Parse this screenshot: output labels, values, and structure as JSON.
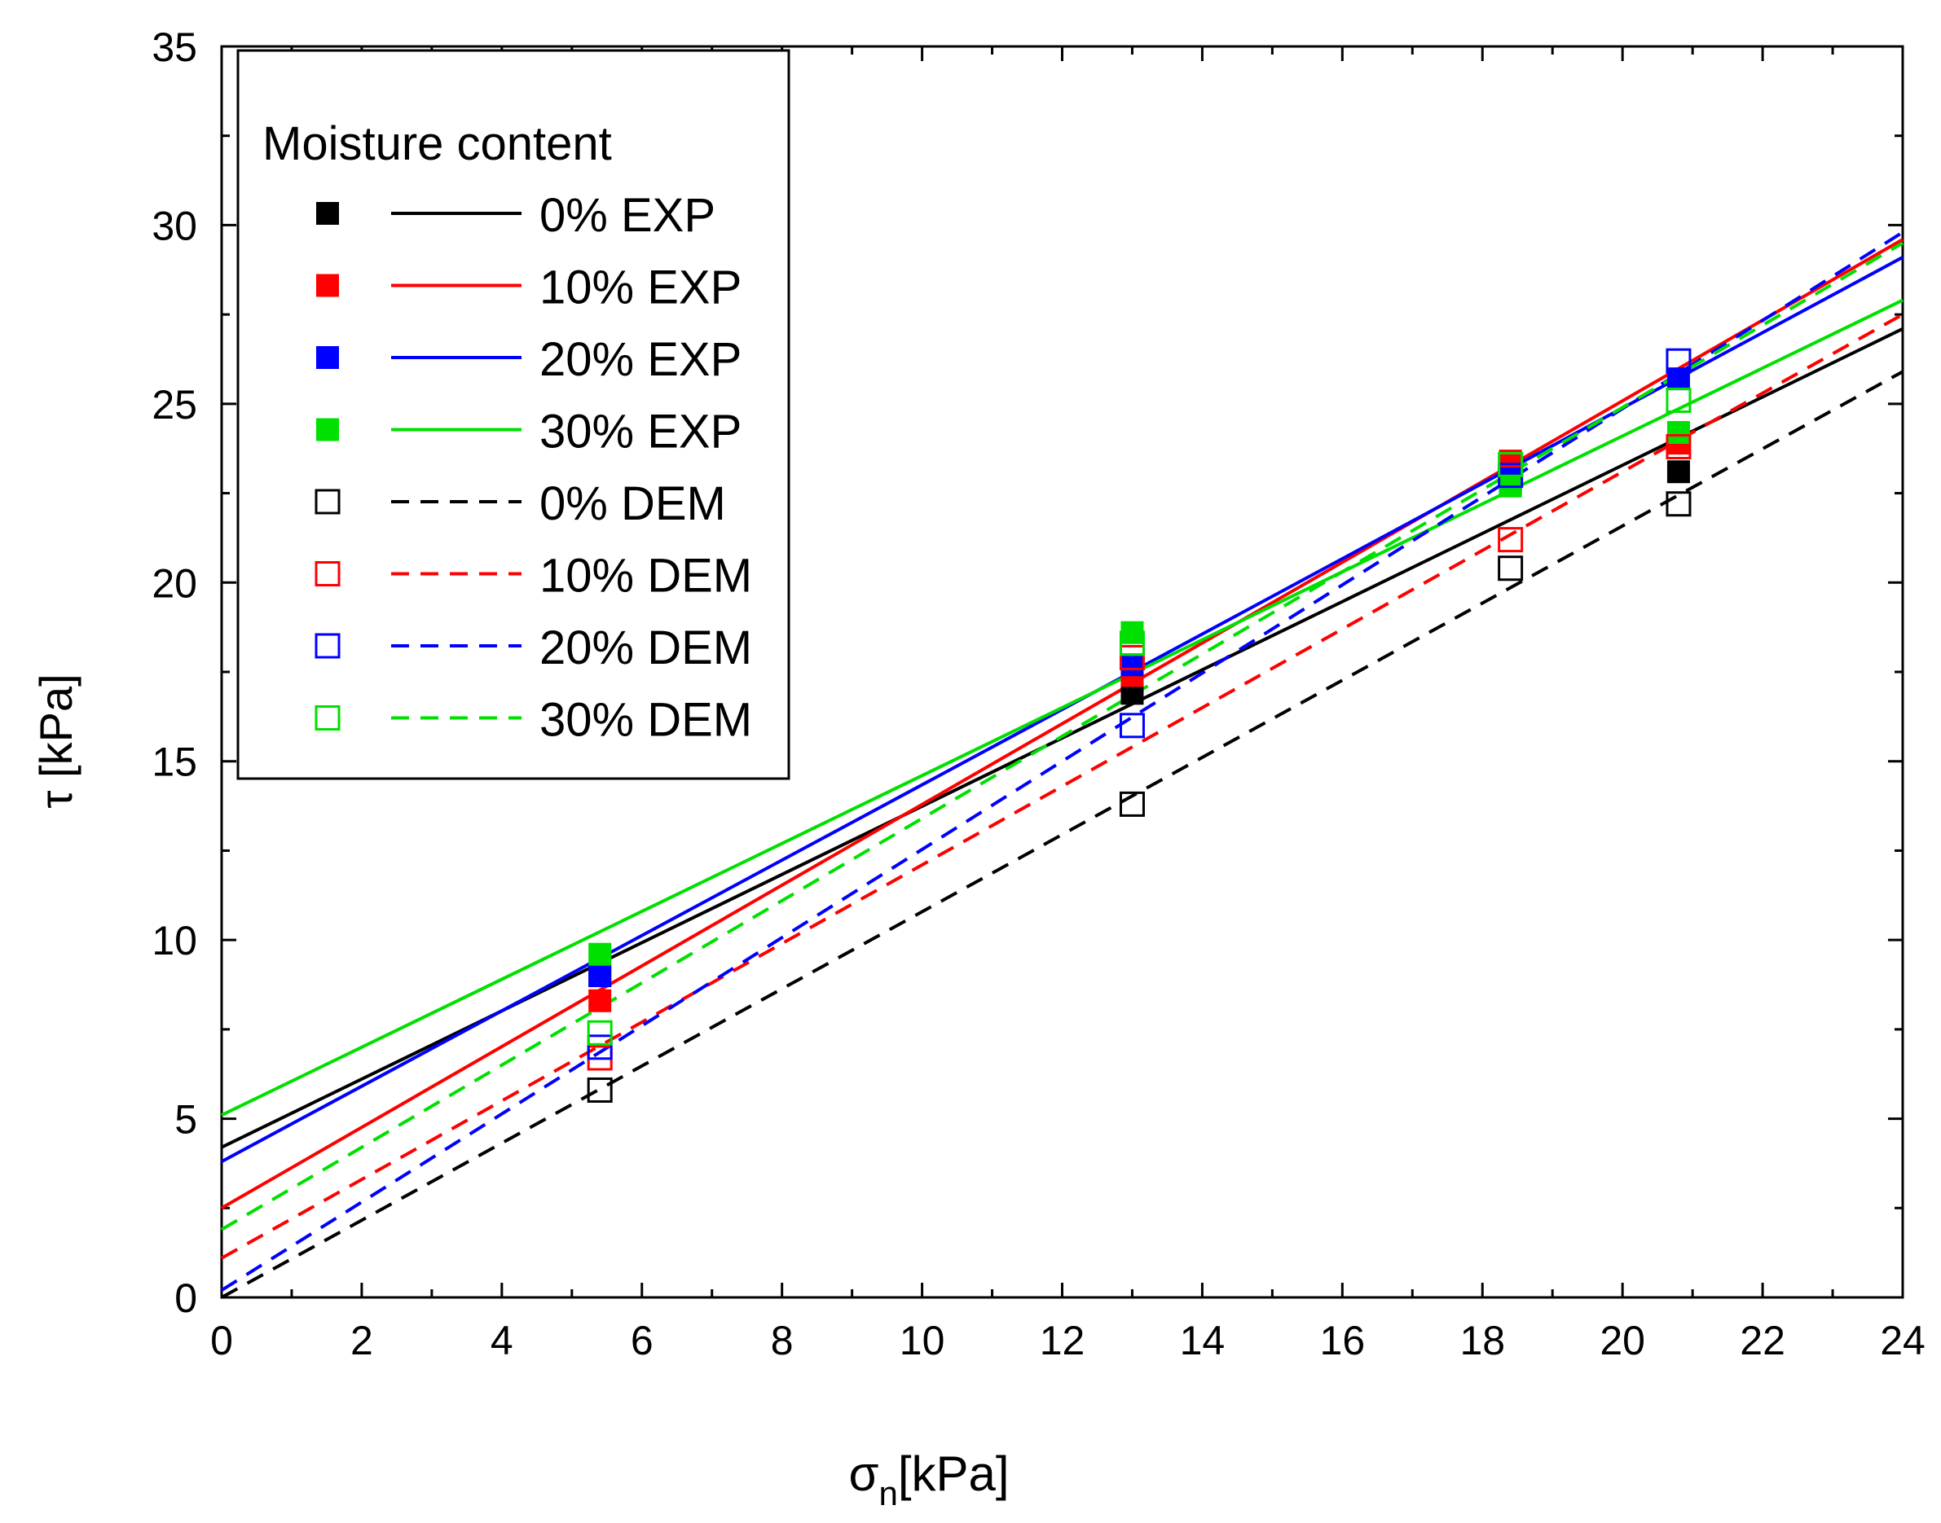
{
  "chart_data": {
    "type": "scatter",
    "title": "",
    "xlabel": "σn[kPa]",
    "xlabel_main": "σ",
    "xlabel_sub": "n",
    "xlabel_unit": "[kPa]",
    "ylabel": "τ [kPa]",
    "xlim": [
      0,
      24
    ],
    "ylim": [
      0,
      35
    ],
    "x_ticks": [
      "0",
      "2",
      "4",
      "6",
      "8",
      "10",
      "12",
      "14",
      "16",
      "18",
      "20",
      "22",
      "24"
    ],
    "y_ticks": [
      "0",
      "5",
      "10",
      "15",
      "20",
      "25",
      "30",
      "35"
    ],
    "grid": false,
    "legend_title": "Moisture content",
    "legend_position": "top-left",
    "x": [
      5.4,
      13.0,
      18.4,
      20.8
    ],
    "series": [
      {
        "name": "0% EXP",
        "color": "#000000",
        "marker": "filled-square",
        "values": [
          9.0,
          16.9,
          22.8,
          23.1
        ],
        "fit": [
          4.2,
          27.1
        ],
        "line": "solid"
      },
      {
        "name": "10% EXP",
        "color": "#ff0000",
        "marker": "filled-square",
        "values": [
          8.3,
          17.4,
          23.4,
          23.9
        ],
        "fit": [
          2.5,
          29.6
        ],
        "line": "solid"
      },
      {
        "name": "20% EXP",
        "color": "#0000ff",
        "marker": "filled-square",
        "values": [
          9.0,
          17.7,
          22.9,
          25.7
        ],
        "fit": [
          3.8,
          29.1
        ],
        "line": "solid"
      },
      {
        "name": "30% EXP",
        "color": "#00e000",
        "marker": "filled-square",
        "values": [
          9.6,
          18.6,
          22.7,
          24.2
        ],
        "fit": [
          5.1,
          27.9
        ],
        "line": "solid"
      },
      {
        "name": "0% DEM",
        "color": "#000000",
        "marker": "open-square",
        "values": [
          5.8,
          13.8,
          20.4,
          22.2
        ],
        "fit": [
          0.0,
          25.9
        ],
        "line": "dashed"
      },
      {
        "name": "10% DEM",
        "color": "#ff0000",
        "marker": "open-square",
        "values": [
          6.7,
          17.9,
          21.2,
          23.8
        ],
        "fit": [
          1.1,
          27.5
        ],
        "line": "dashed"
      },
      {
        "name": "20% DEM",
        "color": "#0000ff",
        "marker": "open-square",
        "values": [
          7.0,
          16.0,
          23.0,
          26.2
        ],
        "fit": [
          0.2,
          29.8
        ],
        "line": "dashed"
      },
      {
        "name": "30% DEM",
        "color": "#00e000",
        "marker": "open-square",
        "values": [
          7.4,
          18.3,
          23.3,
          25.1
        ],
        "fit": [
          1.9,
          29.5
        ],
        "line": "dashed"
      }
    ]
  }
}
